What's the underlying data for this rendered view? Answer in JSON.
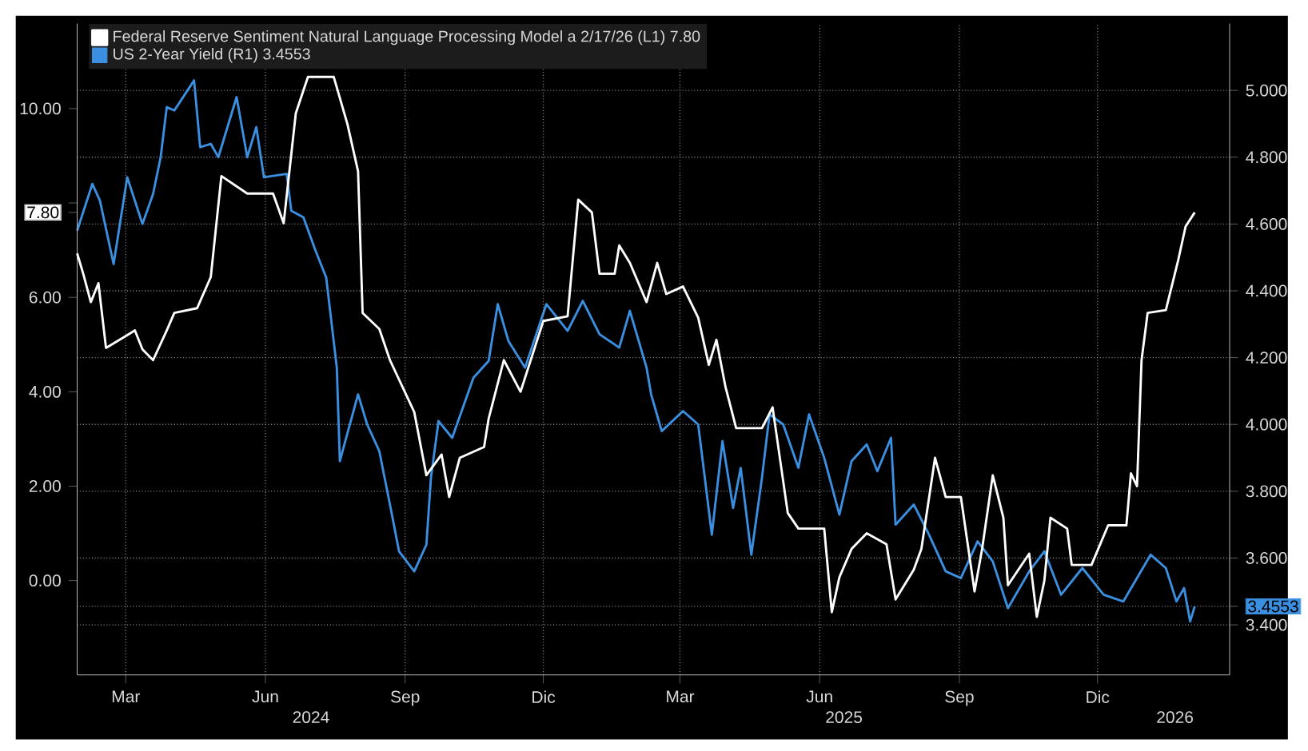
{
  "chart_data": {
    "type": "line",
    "xlim": [
      "2024-02-12",
      "2026-03-12"
    ],
    "ylim": [
      -2,
      11.8
    ],
    "y2lim": [
      3.25,
      5.2
    ],
    "grid": true,
    "legend": "top left",
    "xticks": [
      {
        "value": "2024-03-15",
        "label": "Mar"
      },
      {
        "value": "2024-06-15",
        "label": "Jun"
      },
      {
        "value": "2024-09-15",
        "label": "Sep"
      },
      {
        "value": "2024-12-15",
        "label": "Dic"
      },
      {
        "value": "2025-03-15",
        "label": "Mar"
      },
      {
        "value": "2025-06-15",
        "label": "Jun"
      },
      {
        "value": "2025-09-15",
        "label": "Sep"
      },
      {
        "value": "2025-12-15",
        "label": "Dic"
      }
    ],
    "x2lim": [
      "2024-02-12",
      "2026-03-12"
    ],
    "x2ticks": [
      {
        "value": "2024-07-15",
        "label": "2024"
      },
      {
        "value": "2025-07-01",
        "label": "2025"
      },
      {
        "value": "2026-02-04",
        "label": "2026"
      }
    ],
    "yticks": [
      {
        "value": 0,
        "label": "0.00"
      },
      {
        "value": 2,
        "label": "2.00"
      },
      {
        "value": 4,
        "label": "4.00"
      },
      {
        "value": 6,
        "label": "6.00"
      },
      {
        "value": 7.8,
        "label": "7.80"
      },
      {
        "value": 8,
        "label": null
      },
      {
        "value": 10,
        "label": "10.00"
      }
    ],
    "y2ticks": [
      {
        "value": 3.4,
        "label": "3.400"
      },
      {
        "value": 3.4553,
        "label": "3.4553"
      },
      {
        "value": 3.6,
        "label": "3.600"
      },
      {
        "value": 3.8,
        "label": "3.800"
      },
      {
        "value": 4.0,
        "label": "4.000"
      },
      {
        "value": 4.2,
        "label": "4.200"
      },
      {
        "value": 4.4,
        "label": "4.400"
      },
      {
        "value": 4.6,
        "label": "4.600"
      },
      {
        "value": 4.8,
        "label": "4.800"
      },
      {
        "value": 5.0,
        "label": "5.000"
      }
    ],
    "series": [
      {
        "name": "Federal Reserve Sentiment Natural Language Processing Model a 2/17/26 (L1) 7.80",
        "color": "#ffffff",
        "x": [
          "2024-02-12",
          "2024-02-16",
          "2024-02-21",
          "2024-02-26",
          "2024-03-02",
          "2024-03-16",
          "2024-03-21",
          "2024-03-26",
          "2024-04-02",
          "2024-04-11",
          "2024-04-16",
          "2024-05-01",
          "2024-05-10",
          "2024-05-17",
          "2024-06-03",
          "2024-06-20",
          "2024-06-27",
          "2024-07-05",
          "2024-07-13",
          "2024-07-30",
          "2024-08-08",
          "2024-08-15",
          "2024-08-18",
          "2024-08-29",
          "2024-09-05",
          "2024-09-21",
          "2024-09-29",
          "2024-10-09",
          "2024-10-14",
          "2024-10-21",
          "2024-11-06",
          "2024-11-09",
          "2024-11-19",
          "2024-11-30",
          "2024-12-15",
          "2024-12-31",
          "2025-01-07",
          "2025-01-16",
          "2025-01-21",
          "2025-01-31",
          "2025-02-03",
          "2025-02-10",
          "2025-02-21",
          "2025-02-28",
          "2025-03-06",
          "2025-03-17",
          "2025-03-27",
          "2025-04-03",
          "2025-04-08",
          "2025-04-14",
          "2025-04-21",
          "2025-05-08",
          "2025-05-15",
          "2025-05-25",
          "2025-06-01",
          "2025-06-18",
          "2025-06-23",
          "2025-06-28",
          "2025-07-06",
          "2025-07-16",
          "2025-07-29",
          "2025-08-04",
          "2025-08-16",
          "2025-08-21",
          "2025-08-30",
          "2025-09-06",
          "2025-09-16",
          "2025-09-25",
          "2025-09-30",
          "2025-10-07",
          "2025-10-14",
          "2025-10-17",
          "2025-10-31",
          "2025-11-05",
          "2025-11-10",
          "2025-11-14",
          "2025-11-25",
          "2025-11-28",
          "2025-12-11",
          "2025-12-22",
          "2026-01-03",
          "2026-01-06",
          "2026-01-10",
          "2026-01-13",
          "2026-01-17",
          "2026-01-29",
          "2026-02-06",
          "2026-02-11",
          "2026-02-17"
        ],
        "values": [
          6.93,
          6.5,
          5.9,
          6.3,
          4.93,
          5.2,
          5.3,
          4.9,
          4.67,
          5.3,
          5.67,
          5.77,
          6.43,
          8.57,
          8.2,
          8.2,
          7.57,
          9.9,
          10.67,
          10.67,
          9.67,
          8.67,
          5.67,
          5.33,
          4.67,
          3.57,
          2.23,
          2.67,
          1.77,
          2.6,
          2.83,
          3.43,
          4.67,
          4.0,
          5.5,
          5.6,
          8.07,
          7.8,
          6.5,
          6.5,
          7.1,
          6.73,
          5.9,
          6.73,
          6.07,
          6.23,
          5.57,
          4.57,
          5.1,
          4.1,
          3.23,
          3.23,
          3.67,
          1.43,
          1.1,
          1.1,
          -0.67,
          0.07,
          0.67,
          1.0,
          0.77,
          -0.4,
          0.23,
          0.67,
          2.6,
          1.77,
          1.77,
          -0.23,
          0.67,
          2.23,
          1.33,
          -0.1,
          0.57,
          -0.77,
          0.0,
          1.33,
          1.1,
          0.33,
          0.33,
          1.17,
          1.17,
          2.27,
          2.0,
          4.67,
          5.67,
          5.73,
          6.77,
          7.5,
          7.8
        ]
      },
      {
        "name": "US 2-Year Yield (R1) 3.4553",
        "color": "#3a8fe0",
        "axis": "y2",
        "x": [
          "2024-02-12",
          "2024-02-22",
          "2024-02-27",
          "2024-03-07",
          "2024-03-16",
          "2024-03-26",
          "2024-04-02",
          "2024-04-07",
          "2024-04-11",
          "2024-04-16",
          "2024-04-29",
          "2024-05-03",
          "2024-05-10",
          "2024-05-15",
          "2024-05-27",
          "2024-06-03",
          "2024-06-09",
          "2024-06-14",
          "2024-06-29",
          "2024-07-02",
          "2024-07-10",
          "2024-07-18",
          "2024-07-25",
          "2024-08-01",
          "2024-08-03",
          "2024-08-15",
          "2024-08-21",
          "2024-08-29",
          "2024-09-05",
          "2024-09-11",
          "2024-09-21",
          "2024-09-29",
          "2024-10-02",
          "2024-10-07",
          "2024-10-16",
          "2024-10-30",
          "2024-11-09",
          "2024-11-15",
          "2024-11-22",
          "2024-12-03",
          "2024-12-17",
          "2024-12-31",
          "2025-01-10",
          "2025-01-21",
          "2025-02-03",
          "2025-02-10",
          "2025-02-21",
          "2025-02-24",
          "2025-03-03",
          "2025-03-17",
          "2025-03-27",
          "2025-04-05",
          "2025-04-12",
          "2025-04-19",
          "2025-04-24",
          "2025-05-01",
          "2025-05-08",
          "2025-05-13",
          "2025-05-22",
          "2025-06-01",
          "2025-06-08",
          "2025-06-18",
          "2025-06-28",
          "2025-07-06",
          "2025-07-16",
          "2025-07-23",
          "2025-08-01",
          "2025-08-04",
          "2025-08-16",
          "2025-08-26",
          "2025-09-06",
          "2025-09-16",
          "2025-09-27",
          "2025-10-07",
          "2025-10-17",
          "2025-10-31",
          "2025-11-10",
          "2025-11-21",
          "2025-12-05",
          "2025-12-19",
          "2026-01-01",
          "2026-01-19",
          "2026-01-29",
          "2026-02-05",
          "2026-02-10",
          "2026-02-14",
          "2026-02-17"
        ],
        "values": [
          4.58,
          4.72,
          4.67,
          4.48,
          4.74,
          4.6,
          4.69,
          4.8,
          4.95,
          4.94,
          5.03,
          4.83,
          4.84,
          4.8,
          4.98,
          4.8,
          4.89,
          4.74,
          4.75,
          4.64,
          4.62,
          4.52,
          4.44,
          4.17,
          3.89,
          4.09,
          4.0,
          3.92,
          3.76,
          3.62,
          3.56,
          3.64,
          3.84,
          4.01,
          3.96,
          4.14,
          4.19,
          4.36,
          4.25,
          4.17,
          4.36,
          4.28,
          4.37,
          4.27,
          4.23,
          4.34,
          4.17,
          4.09,
          3.98,
          4.04,
          4.0,
          3.67,
          3.95,
          3.75,
          3.87,
          3.61,
          3.84,
          4.03,
          4.0,
          3.87,
          4.03,
          3.9,
          3.73,
          3.89,
          3.94,
          3.86,
          3.96,
          3.7,
          3.76,
          3.67,
          3.56,
          3.54,
          3.65,
          3.59,
          3.45,
          3.56,
          3.62,
          3.49,
          3.57,
          3.49,
          3.47,
          3.61,
          3.57,
          3.47,
          3.51,
          3.41,
          3.4553
        ]
      }
    ]
  }
}
